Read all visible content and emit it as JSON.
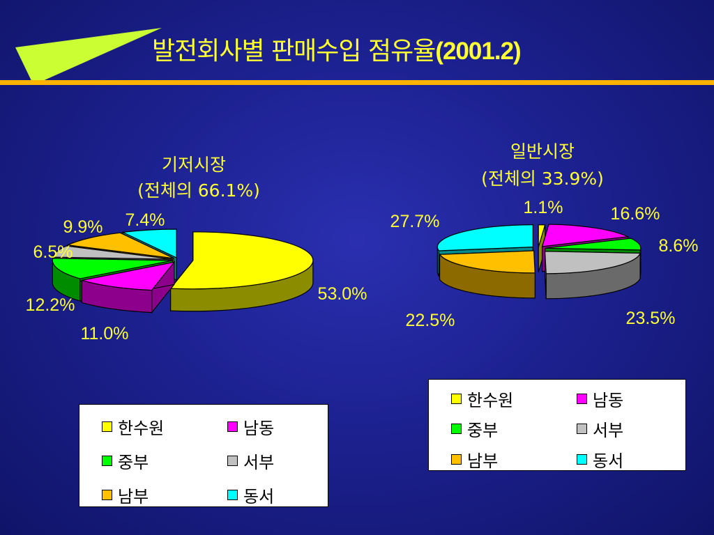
{
  "slide": {
    "title": "발전회사별 판매수입 점유율",
    "title_suffix": "(2001.2)"
  },
  "colors": {
    "accent_rule": "#ffb300",
    "title_text": "#ffff33",
    "arrow_fill": "#ccff33"
  },
  "chart_data": [
    {
      "type": "pie",
      "title": "기저시장",
      "subtitle": "(전체의 66.1%)",
      "categories": [
        "한수원",
        "남동",
        "중부",
        "서부",
        "남부",
        "동서"
      ],
      "values": [
        53.0,
        11.0,
        12.2,
        6.5,
        9.9,
        7.4
      ],
      "labels": [
        "53.0%",
        "11.0%",
        "12.2%",
        "6.5%",
        "9.9%",
        "7.4%"
      ],
      "colors": [
        "#ffff00",
        "#ff00ff",
        "#00ff00",
        "#c0c0c0",
        "#ffc000",
        "#00ffff"
      ],
      "exploded": true,
      "three_d": true,
      "legend": "bottom"
    },
    {
      "type": "pie",
      "title": "일반시장",
      "subtitle": "(전체의 33.9%)",
      "categories": [
        "한수원",
        "남동",
        "중부",
        "서부",
        "남부",
        "동서"
      ],
      "values": [
        1.1,
        16.6,
        8.6,
        23.5,
        22.5,
        27.7
      ],
      "labels": [
        "1.1%",
        "16.6%",
        "8.6%",
        "23.5%",
        "22.5%",
        "27.7%"
      ],
      "colors": [
        "#ffff00",
        "#ff00ff",
        "#00ff00",
        "#c0c0c0",
        "#ffc000",
        "#00ffff"
      ],
      "exploded": true,
      "three_d": true,
      "legend": "bottom"
    }
  ]
}
